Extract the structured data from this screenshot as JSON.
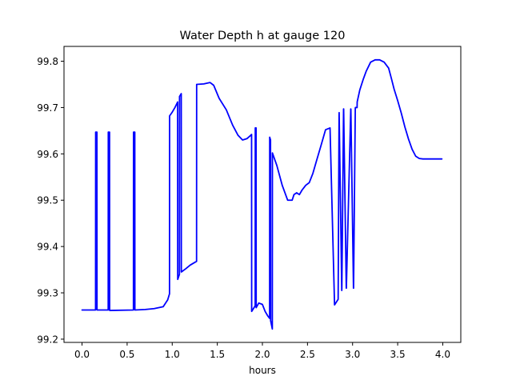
{
  "chart_data": {
    "type": "line",
    "title": "Water Depth h at gauge 120",
    "xlabel": "hours",
    "ylabel": "",
    "xlim": [
      -0.2,
      4.2
    ],
    "ylim": [
      99.193,
      99.832
    ],
    "xticks": [
      0.0,
      0.5,
      1.0,
      1.5,
      2.0,
      2.5,
      3.0,
      3.5,
      4.0
    ],
    "xtick_labels": [
      "0.0",
      "0.5",
      "1.0",
      "1.5",
      "2.0",
      "2.5",
      "3.0",
      "3.5",
      "4.0"
    ],
    "yticks": [
      99.2,
      99.3,
      99.4,
      99.5,
      99.6,
      99.7,
      99.8
    ],
    "ytick_labels": [
      "99.2",
      "99.3",
      "99.4",
      "99.5",
      "99.6",
      "99.7",
      "99.8"
    ],
    "grid": false,
    "series": [
      {
        "color": "#0000ff",
        "x": [
          0.0,
          0.15,
          0.151,
          0.165,
          0.166,
          0.29,
          0.291,
          0.305,
          0.306,
          0.57,
          0.571,
          0.585,
          0.586,
          0.7,
          0.8,
          0.9,
          0.95,
          0.97,
          0.971,
          1.0,
          1.03,
          1.06,
          1.061,
          1.08,
          1.081,
          1.1,
          1.101,
          1.15,
          1.2,
          1.27,
          1.271,
          1.35,
          1.42,
          1.46,
          1.52,
          1.6,
          1.67,
          1.73,
          1.78,
          1.83,
          1.87,
          1.88,
          1.881,
          1.92,
          1.921,
          1.93,
          1.931,
          1.96,
          2.0,
          2.03,
          2.06,
          2.08,
          2.081,
          2.09,
          2.091,
          2.11,
          2.111,
          2.16,
          2.22,
          2.28,
          2.33,
          2.35,
          2.38,
          2.41,
          2.44,
          2.48,
          2.52,
          2.56,
          2.6,
          2.65,
          2.7,
          2.75,
          2.8,
          2.84,
          2.85,
          2.851,
          2.88,
          2.881,
          2.9,
          2.901,
          2.93,
          2.931,
          2.98,
          2.981,
          3.01,
          3.011,
          3.03,
          3.031,
          3.05,
          3.051,
          3.08,
          3.12,
          3.15,
          3.2,
          3.25,
          3.3,
          3.35,
          3.4,
          3.43,
          3.46,
          3.5,
          3.54,
          3.58,
          3.62,
          3.66,
          3.7,
          3.74,
          3.78,
          3.82,
          3.86,
          3.9,
          3.95,
          3.99
        ],
        "y": [
          99.263,
          99.263,
          99.647,
          99.647,
          99.263,
          99.263,
          99.647,
          99.647,
          99.262,
          99.263,
          99.647,
          99.647,
          99.263,
          99.264,
          99.266,
          99.27,
          99.285,
          99.298,
          99.682,
          99.69,
          99.7,
          99.712,
          99.329,
          99.34,
          99.724,
          99.73,
          99.345,
          99.352,
          99.36,
          99.368,
          99.75,
          99.751,
          99.754,
          99.748,
          99.72,
          99.695,
          99.662,
          99.64,
          99.63,
          99.633,
          99.64,
          99.642,
          99.26,
          99.272,
          99.656,
          99.656,
          99.268,
          99.278,
          99.275,
          99.26,
          99.25,
          99.245,
          99.636,
          99.63,
          99.24,
          99.222,
          99.602,
          99.575,
          99.532,
          99.5,
          99.5,
          99.512,
          99.516,
          99.512,
          99.522,
          99.532,
          99.538,
          99.558,
          99.585,
          99.618,
          99.652,
          99.656,
          99.274,
          99.286,
          99.683,
          99.689,
          99.305,
          99.31,
          99.697,
          99.697,
          99.31,
          99.31,
          99.697,
          99.696,
          99.31,
          99.31,
          99.698,
          99.7,
          99.7,
          99.712,
          99.738,
          99.762,
          99.778,
          99.798,
          99.803,
          99.803,
          99.798,
          99.785,
          99.763,
          99.74,
          99.715,
          99.688,
          99.658,
          99.632,
          99.61,
          99.595,
          99.59,
          99.589,
          99.589,
          99.589,
          99.589,
          99.589,
          99.589
        ]
      }
    ]
  }
}
